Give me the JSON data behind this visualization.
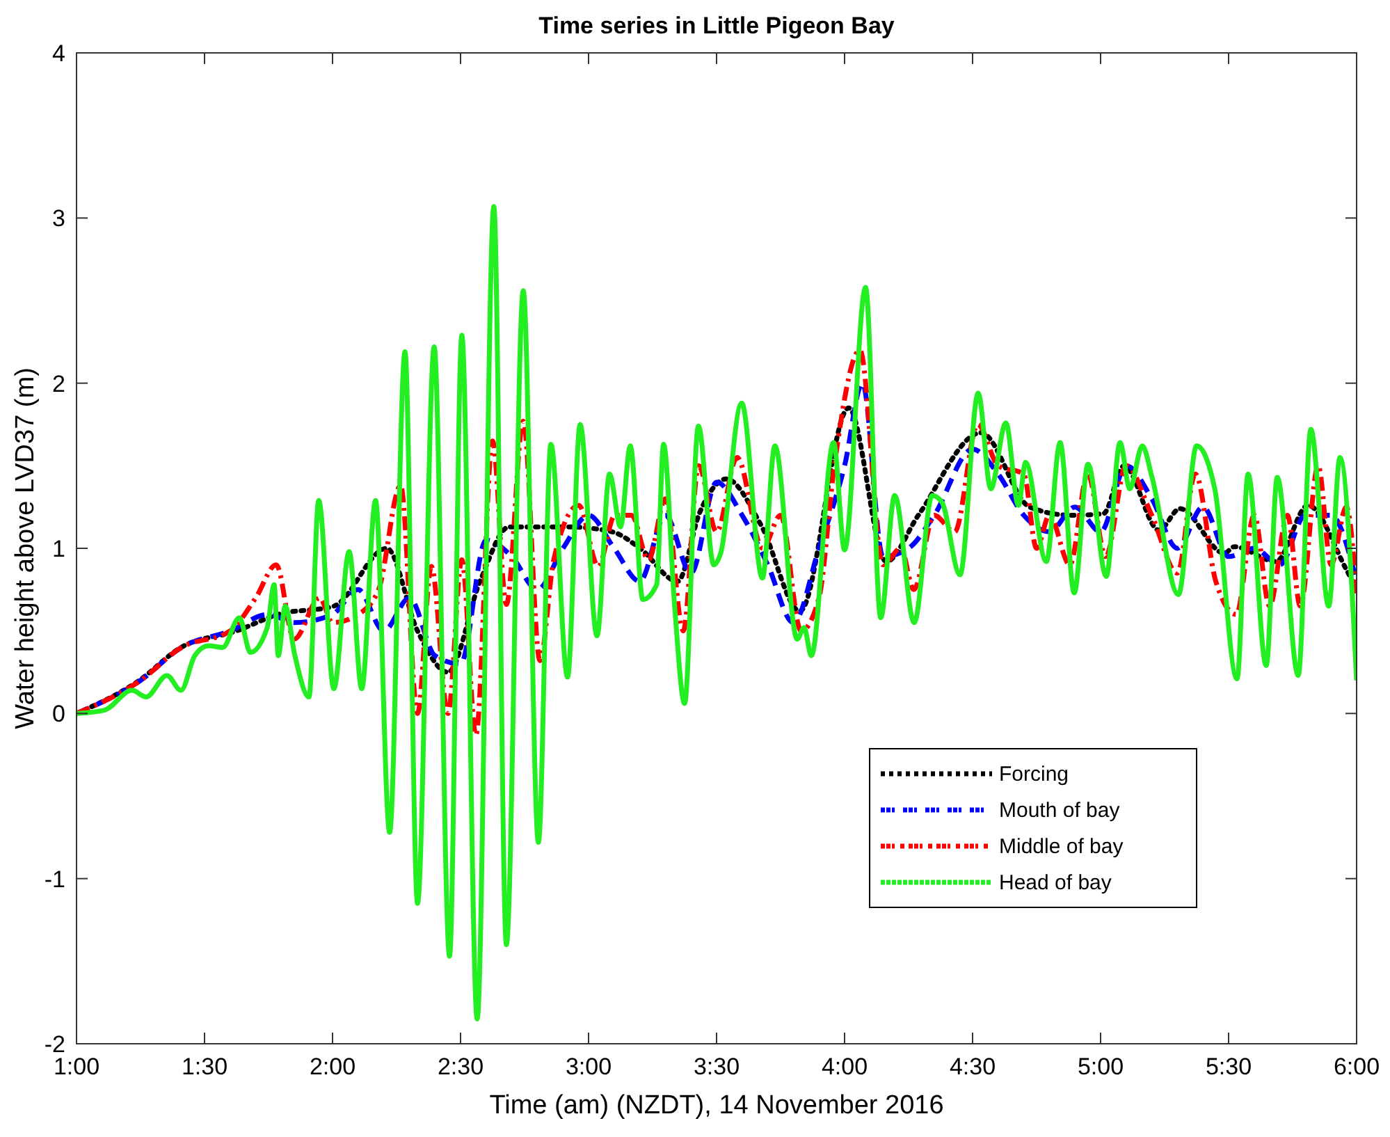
{
  "chart_data": {
    "type": "line",
    "title": "Time series in Little Pigeon Bay",
    "xlabel": "Time (am) (NZDT), 14 November 2016",
    "ylabel": "Water height above LVD37 (m)",
    "xlim": [
      1,
      6
    ],
    "xticks": [
      {
        "value": 1,
        "label": "1:00"
      },
      {
        "value": 1.5,
        "label": "1:30"
      },
      {
        "value": 2,
        "label": "2:00"
      },
      {
        "value": 2.5,
        "label": "2:30"
      },
      {
        "value": 3,
        "label": "3:00"
      },
      {
        "value": 3.5,
        "label": "3:30"
      },
      {
        "value": 4,
        "label": "4:00"
      },
      {
        "value": 4.5,
        "label": "4:30"
      },
      {
        "value": 5,
        "label": "5:00"
      },
      {
        "value": 5.5,
        "label": "5:30"
      },
      {
        "value": 6,
        "label": "6:00"
      }
    ],
    "ylim": [
      -2,
      4
    ],
    "yticks": [
      -2,
      -1,
      0,
      1,
      2,
      3,
      4
    ],
    "grid": false,
    "legend": "bottom right",
    "marker": "none",
    "series": [
      {
        "name": "Forcing",
        "color": "#000000",
        "line_style": "dotted",
        "x": [
          1.0,
          1.245,
          1.408,
          1.625,
          1.788,
          2.005,
          2.212,
          2.332,
          2.451,
          2.576,
          2.69,
          2.918,
          3.092,
          3.201,
          3.348,
          3.435,
          3.538,
          3.674,
          3.826,
          4.016,
          4.163,
          4.288,
          4.533,
          4.723,
          4.886,
          5.011,
          5.092,
          5.228,
          5.31,
          5.484,
          5.522,
          5.685,
          5.81,
          5.957,
          6.0
        ],
        "values": [
          0,
          0.2,
          0.4,
          0.5,
          0.6,
          0.65,
          1.0,
          0.5,
          0.25,
          0.8,
          1.13,
          1.13,
          1.1,
          1.0,
          0.8,
          1.22,
          1.42,
          1.14,
          0.62,
          1.85,
          0.92,
          1.2,
          1.7,
          1.25,
          1.2,
          1.21,
          1.5,
          1.11,
          1.24,
          0.97,
          1.01,
          0.92,
          1.26,
          0.88,
          0.75
        ]
      },
      {
        "name": "Mouth of bay",
        "color": "#0000ff",
        "line_style": "dashed",
        "x": [
          1.0,
          1.25,
          1.41,
          1.6,
          1.75,
          1.85,
          2.0,
          2.1,
          2.2,
          2.3,
          2.4,
          2.5,
          2.6,
          2.7,
          2.8,
          2.9,
          3.0,
          3.1,
          3.2,
          3.3,
          3.4,
          3.5,
          3.6,
          3.7,
          3.8,
          3.9,
          4.0,
          4.07,
          4.15,
          4.25,
          4.35,
          4.5,
          4.6,
          4.7,
          4.8,
          4.9,
          5.0,
          5.1,
          5.2,
          5.3,
          5.4,
          5.5,
          5.6,
          5.7,
          5.8,
          5.9,
          6.0
        ],
        "values": [
          0,
          0.2,
          0.4,
          0.5,
          0.6,
          0.55,
          0.6,
          0.75,
          0.5,
          0.7,
          0.35,
          0.3,
          1.05,
          0.95,
          0.75,
          1.0,
          1.2,
          1.0,
          0.8,
          1.2,
          0.85,
          1.4,
          1.2,
          0.9,
          0.55,
          1.0,
          1.5,
          2.0,
          0.95,
          1.0,
          1.2,
          1.6,
          1.45,
          1.2,
          1.1,
          1.25,
          1.1,
          1.5,
          1.3,
          1.0,
          1.25,
          0.95,
          1.0,
          0.9,
          1.2,
          1.2,
          0.8
        ]
      },
      {
        "name": "Middle of bay",
        "color": "#ff0000",
        "line_style": "dashdot",
        "x": [
          1.0,
          1.25,
          1.41,
          1.6,
          1.7,
          1.78,
          1.85,
          1.95,
          2.0,
          2.1,
          2.18,
          2.266,
          2.332,
          2.386,
          2.451,
          2.505,
          2.56,
          2.625,
          2.679,
          2.745,
          2.81,
          2.864,
          2.962,
          3.038,
          3.103,
          3.168,
          3.234,
          3.3,
          3.37,
          3.43,
          3.5,
          3.58,
          3.68,
          3.75,
          3.83,
          3.9,
          3.96,
          4.06,
          4.15,
          4.22,
          4.27,
          4.35,
          4.43,
          4.52,
          4.6,
          4.7,
          4.75,
          4.8,
          4.88,
          4.95,
          5.02,
          5.1,
          5.2,
          5.3,
          5.37,
          5.45,
          5.53,
          5.6,
          5.66,
          5.73,
          5.78,
          5.85,
          5.9,
          5.96,
          6.0
        ],
        "values": [
          0,
          0.2,
          0.4,
          0.5,
          0.7,
          0.9,
          0.45,
          0.7,
          0.55,
          0.6,
          0.75,
          1.38,
          0.0,
          0.89,
          0.0,
          0.93,
          -0.13,
          1.65,
          0.66,
          1.77,
          0.32,
          0.93,
          1.26,
          0.89,
          1.2,
          1.2,
          0.93,
          1.3,
          0.5,
          1.5,
          1.1,
          1.55,
          1.0,
          1.2,
          0.5,
          0.7,
          1.5,
          2.2,
          0.9,
          1.0,
          0.75,
          1.2,
          1.1,
          1.75,
          1.5,
          1.45,
          1.0,
          1.2,
          0.9,
          1.45,
          0.95,
          1.5,
          1.2,
          0.85,
          1.45,
          0.8,
          0.6,
          1.2,
          0.65,
          1.2,
          0.65,
          1.5,
          0.9,
          1.25,
          0.72
        ]
      },
      {
        "name": "Head of bay",
        "color": "#22ee22",
        "line_style": "solid",
        "x": [
          1.0,
          1.109,
          1.217,
          1.272,
          1.353,
          1.408,
          1.462,
          1.516,
          1.571,
          1.636,
          1.679,
          1.745,
          1.772,
          1.788,
          1.815,
          1.853,
          1.908,
          1.946,
          2.005,
          2.065,
          2.114,
          2.168,
          2.223,
          2.283,
          2.332,
          2.397,
          2.457,
          2.505,
          2.565,
          2.63,
          2.679,
          2.745,
          2.804,
          2.853,
          2.918,
          2.967,
          3.033,
          3.082,
          3.125,
          3.163,
          3.212,
          3.266,
          3.293,
          3.337,
          3.375,
          3.429,
          3.489,
          3.516,
          3.598,
          3.679,
          3.728,
          3.815,
          3.842,
          3.87,
          3.957,
          4.0,
          4.082,
          4.141,
          4.196,
          4.272,
          4.342,
          4.38,
          4.451,
          4.522,
          4.571,
          4.63,
          4.679,
          4.707,
          4.788,
          4.842,
          4.897,
          4.951,
          5.022,
          5.076,
          5.114,
          5.163,
          5.201,
          5.304,
          5.375,
          5.446,
          5.533,
          5.576,
          5.647,
          5.69,
          5.772,
          5.821,
          5.891,
          5.935,
          6.0
        ],
        "values": [
          0,
          0.02,
          0.14,
          0.1,
          0.23,
          0.14,
          0.35,
          0.41,
          0.4,
          0.58,
          0.37,
          0.52,
          0.78,
          0.35,
          0.65,
          0.35,
          0.1,
          1.29,
          0.15,
          0.98,
          0.15,
          1.29,
          -0.72,
          2.19,
          -1.15,
          2.22,
          -1.47,
          2.29,
          -1.85,
          3.07,
          -1.4,
          2.56,
          -0.78,
          1.63,
          0.22,
          1.75,
          0.47,
          1.45,
          1.13,
          1.62,
          0.69,
          0.78,
          1.63,
          0.63,
          0.06,
          1.74,
          0.9,
          0.97,
          1.88,
          0.82,
          1.62,
          0.45,
          0.52,
          0.35,
          1.64,
          0.99,
          2.58,
          0.58,
          1.32,
          0.55,
          1.32,
          1.28,
          0.84,
          1.94,
          1.36,
          1.76,
          1.26,
          1.52,
          0.92,
          1.64,
          0.73,
          1.51,
          0.83,
          1.64,
          1.36,
          1.62,
          1.43,
          0.72,
          1.62,
          1.36,
          0.21,
          1.45,
          0.29,
          1.43,
          0.23,
          1.72,
          0.65,
          1.55,
          0.2
        ]
      }
    ]
  }
}
